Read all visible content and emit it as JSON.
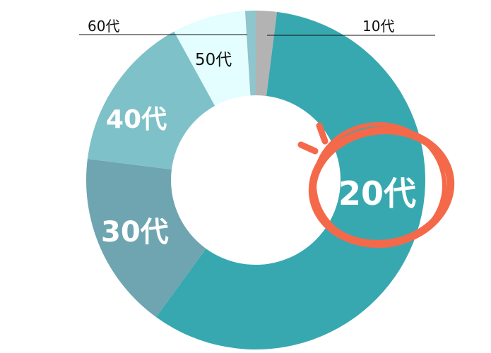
{
  "chart_data": {
    "type": "pie",
    "donut": true,
    "start": "top",
    "direction": "clockwise",
    "categories": [
      "10代",
      "20代",
      "30代",
      "40代",
      "50代",
      "60代"
    ],
    "values": [
      2,
      58,
      17,
      15,
      7,
      1
    ],
    "colors": [
      "#b3b3b3",
      "#38a8b0",
      "#6fa5b0",
      "#7fc1c8",
      "#e4fdff",
      "#8fc5cc"
    ],
    "highlight": {
      "category": "20代",
      "color": "#f4694a",
      "mark": "hand-drawn circle"
    }
  }
}
